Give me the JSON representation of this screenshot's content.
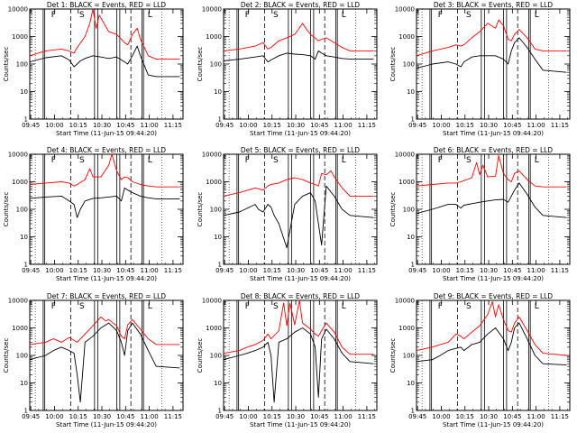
{
  "figure": {
    "background": "#ffffff",
    "colors": {
      "events": "#000000",
      "lld": "#ff0000",
      "axis": "#000000"
    }
  },
  "common": {
    "ylabel": "Counts/sec",
    "xlabel": "Start Time (11-Jun-15 09:44:20)",
    "x_ticks": [
      "09:45",
      "10:00",
      "10:15",
      "10:30",
      "10:45",
      "11:00",
      "11:15"
    ],
    "y_ticks": [
      "1",
      "10",
      "100",
      "1000",
      "10000"
    ],
    "marker_labels": {
      "F": "F",
      "S": "S",
      "L": "L"
    }
  },
  "chart_data": [
    {
      "type": "line",
      "detector": 1,
      "title": "Det 1: BLACK = Events, RED = LLD",
      "x_unit": "minutes since 09:44:20",
      "xlim": [
        0,
        97
      ],
      "yscale": "log",
      "ylim": [
        1,
        10000
      ],
      "series": [
        {
          "name": "Events",
          "color": "#000000",
          "x": [
            0,
            10,
            20,
            25,
            28,
            30,
            32,
            35,
            40,
            45,
            50,
            55,
            60,
            62,
            65,
            68,
            70,
            75,
            80,
            95
          ],
          "y": [
            120,
            170,
            200,
            140,
            80,
            100,
            130,
            160,
            200,
            180,
            160,
            180,
            120,
            100,
            200,
            450,
            200,
            40,
            35,
            35
          ]
        },
        {
          "name": "LLD",
          "color": "#ff0000",
          "x": [
            0,
            10,
            20,
            25,
            28,
            30,
            35,
            38,
            40,
            42,
            44,
            50,
            55,
            60,
            62,
            65,
            68,
            70,
            75,
            80,
            95
          ],
          "y": [
            200,
            300,
            350,
            300,
            250,
            400,
            1000,
            3000,
            10000,
            2000,
            6000,
            1500,
            1200,
            600,
            500,
            1200,
            2000,
            800,
            200,
            150,
            150
          ]
        }
      ],
      "markers": [
        {
          "label": "F",
          "x": 15
        },
        {
          "label": "S",
          "x": 33
        },
        {
          "label": "L",
          "x": 76
        }
      ]
    },
    {
      "type": "line",
      "detector": 2,
      "title": "Det 2: BLACK = Events, RED = LLD",
      "x_unit": "minutes since 09:44:20",
      "xlim": [
        0,
        97
      ],
      "yscale": "log",
      "ylim": [
        1,
        10000
      ],
      "series": [
        {
          "name": "Events",
          "color": "#000000",
          "x": [
            0,
            10,
            20,
            25,
            28,
            30,
            35,
            40,
            45,
            50,
            55,
            58,
            60,
            62,
            65,
            70,
            75,
            80,
            95
          ],
          "y": [
            130,
            150,
            180,
            200,
            120,
            140,
            200,
            250,
            230,
            220,
            200,
            150,
            300,
            250,
            200,
            180,
            160,
            150,
            150
          ]
        },
        {
          "name": "LLD",
          "color": "#ff0000",
          "x": [
            0,
            10,
            20,
            25,
            28,
            30,
            35,
            40,
            45,
            50,
            52,
            55,
            60,
            62,
            65,
            70,
            75,
            80,
            95
          ],
          "y": [
            300,
            350,
            450,
            600,
            350,
            400,
            700,
            900,
            1200,
            3000,
            2000,
            1200,
            700,
            800,
            900,
            600,
            400,
            300,
            300
          ]
        }
      ],
      "markers": [
        {
          "label": "F",
          "x": 15
        },
        {
          "label": "S",
          "x": 33
        },
        {
          "label": "L",
          "x": 76
        }
      ]
    },
    {
      "type": "line",
      "detector": 3,
      "title": "Det 3: BLACK = Events, RED = LLD",
      "x_unit": "minutes since 09:44:20",
      "xlim": [
        0,
        97
      ],
      "yscale": "log",
      "ylim": [
        1,
        10000
      ],
      "series": [
        {
          "name": "Events",
          "color": "#000000",
          "x": [
            0,
            10,
            20,
            25,
            28,
            30,
            35,
            40,
            45,
            50,
            55,
            58,
            60,
            62,
            65,
            70,
            75,
            80,
            95
          ],
          "y": [
            70,
            100,
            120,
            100,
            80,
            120,
            180,
            200,
            200,
            200,
            150,
            100,
            300,
            600,
            900,
            400,
            150,
            60,
            50
          ]
        },
        {
          "name": "LLD",
          "color": "#ff0000",
          "x": [
            0,
            10,
            20,
            25,
            28,
            30,
            35,
            40,
            45,
            50,
            52,
            55,
            58,
            60,
            62,
            65,
            70,
            75,
            80,
            95
          ],
          "y": [
            200,
            300,
            400,
            500,
            450,
            500,
            900,
            1500,
            3000,
            2000,
            4000,
            2500,
            800,
            700,
            1200,
            1800,
            900,
            350,
            300,
            300
          ]
        }
      ],
      "markers": [
        {
          "label": "F",
          "x": 15
        },
        {
          "label": "S",
          "x": 33
        },
        {
          "label": "L",
          "x": 76
        }
      ]
    },
    {
      "type": "line",
      "detector": 4,
      "title": "Det 4: BLACK = Events, RED = LLD",
      "x_unit": "minutes since 09:44:20",
      "xlim": [
        0,
        97
      ],
      "yscale": "log",
      "ylim": [
        1,
        10000
      ],
      "series": [
        {
          "name": "Events",
          "color": "#000000",
          "x": [
            0,
            10,
            20,
            25,
            28,
            30,
            32,
            35,
            40,
            45,
            50,
            55,
            58,
            60,
            62,
            65,
            70,
            75,
            80,
            95
          ],
          "y": [
            250,
            280,
            300,
            200,
            150,
            50,
            100,
            200,
            250,
            260,
            280,
            300,
            200,
            600,
            500,
            400,
            300,
            260,
            240,
            240
          ]
        },
        {
          "name": "LLD",
          "color": "#ff0000",
          "x": [
            0,
            10,
            20,
            25,
            28,
            30,
            35,
            38,
            40,
            45,
            50,
            52,
            55,
            58,
            60,
            62,
            65,
            70,
            75,
            80,
            95
          ],
          "y": [
            800,
            900,
            1000,
            900,
            700,
            800,
            1200,
            3000,
            1500,
            1500,
            4000,
            10000,
            2500,
            1200,
            1500,
            1400,
            1000,
            800,
            700,
            650,
            650
          ]
        }
      ],
      "markers": [
        {
          "label": "F",
          "x": 15
        },
        {
          "label": "S",
          "x": 33
        },
        {
          "label": "L",
          "x": 76
        }
      ]
    },
    {
      "type": "line",
      "detector": 5,
      "title": "Det 5: BLACK = Events, RED = LLD",
      "x_unit": "minutes since 09:44:20",
      "xlim": [
        0,
        97
      ],
      "yscale": "log",
      "ylim": [
        1,
        10000
      ],
      "series": [
        {
          "name": "Events",
          "color": "#000000",
          "x": [
            0,
            10,
            20,
            22,
            25,
            28,
            30,
            32,
            35,
            40,
            45,
            50,
            55,
            58,
            60,
            62,
            65,
            70,
            75,
            80,
            95
          ],
          "y": [
            60,
            80,
            150,
            100,
            80,
            150,
            120,
            60,
            30,
            4,
            150,
            300,
            400,
            200,
            30,
            5,
            700,
            300,
            100,
            60,
            50
          ]
        },
        {
          "name": "LLD",
          "color": "#ff0000",
          "x": [
            0,
            10,
            20,
            25,
            28,
            30,
            35,
            40,
            45,
            50,
            55,
            58,
            60,
            62,
            65,
            68,
            70,
            75,
            80,
            95
          ],
          "y": [
            300,
            400,
            600,
            500,
            700,
            800,
            900,
            1200,
            1400,
            1200,
            900,
            800,
            700,
            2000,
            1800,
            2500,
            1500,
            600,
            300,
            300
          ]
        }
      ],
      "markers": [
        {
          "label": "F",
          "x": 15
        },
        {
          "label": "S",
          "x": 33
        },
        {
          "label": "L",
          "x": 76
        }
      ]
    },
    {
      "type": "line",
      "detector": 6,
      "title": "Det 6: BLACK = Events, RED = LLD",
      "x_unit": "minutes since 09:44:20",
      "xlim": [
        0,
        97
      ],
      "yscale": "log",
      "ylim": [
        1,
        10000
      ],
      "series": [
        {
          "name": "Events",
          "color": "#000000",
          "x": [
            0,
            10,
            20,
            25,
            28,
            30,
            35,
            40,
            45,
            50,
            55,
            58,
            60,
            62,
            65,
            70,
            75,
            80,
            95
          ],
          "y": [
            70,
            100,
            150,
            150,
            110,
            140,
            160,
            180,
            200,
            220,
            230,
            180,
            300,
            500,
            900,
            350,
            120,
            60,
            50
          ]
        },
        {
          "name": "LLD",
          "color": "#ff0000",
          "x": [
            0,
            10,
            20,
            25,
            28,
            30,
            35,
            38,
            40,
            42,
            45,
            50,
            52,
            55,
            58,
            60,
            62,
            65,
            70,
            75,
            80,
            95
          ],
          "y": [
            700,
            800,
            900,
            900,
            1000,
            1100,
            1400,
            5000,
            1800,
            4000,
            1500,
            1600,
            9000,
            2000,
            1200,
            1000,
            2000,
            2500,
            1200,
            700,
            650,
            650
          ]
        }
      ],
      "markers": [
        {
          "label": "F",
          "x": 15
        },
        {
          "label": "S",
          "x": 33
        },
        {
          "label": "L",
          "x": 76
        }
      ]
    },
    {
      "type": "line",
      "detector": 7,
      "title": "Det 7: BLACK = Events, RED = LLD",
      "x_unit": "minutes since 09:44:20",
      "xlim": [
        0,
        97
      ],
      "yscale": "log",
      "ylim": [
        1,
        10000
      ],
      "series": [
        {
          "name": "Events",
          "color": "#000000",
          "x": [
            0,
            10,
            15,
            20,
            25,
            28,
            30,
            32,
            35,
            40,
            45,
            50,
            55,
            58,
            60,
            62,
            65,
            70,
            75,
            80,
            95
          ],
          "y": [
            70,
            100,
            150,
            200,
            150,
            120,
            20,
            2,
            300,
            500,
            1000,
            1500,
            800,
            300,
            100,
            800,
            1500,
            600,
            150,
            40,
            35
          ]
        },
        {
          "name": "LLD",
          "color": "#ff0000",
          "x": [
            0,
            10,
            15,
            20,
            25,
            28,
            30,
            35,
            40,
            45,
            48,
            50,
            55,
            58,
            60,
            62,
            65,
            70,
            75,
            80,
            95
          ],
          "y": [
            250,
            300,
            400,
            300,
            450,
            350,
            300,
            600,
            1200,
            2500,
            1800,
            2000,
            1200,
            500,
            400,
            1300,
            2000,
            900,
            400,
            250,
            250
          ]
        }
      ],
      "markers": [
        {
          "label": "F",
          "x": 15
        },
        {
          "label": "S",
          "x": 33
        },
        {
          "label": "L",
          "x": 76
        }
      ]
    },
    {
      "type": "line",
      "detector": 8,
      "title": "Det 8: BLACK = Events, RED = LLD",
      "x_unit": "minutes since 09:44:20",
      "xlim": [
        0,
        97
      ],
      "yscale": "log",
      "ylim": [
        1,
        10000
      ],
      "series": [
        {
          "name": "Events",
          "color": "#000000",
          "x": [
            0,
            10,
            15,
            20,
            25,
            28,
            30,
            32,
            35,
            40,
            45,
            50,
            55,
            58,
            60,
            62,
            65,
            70,
            75,
            80,
            95
          ],
          "y": [
            70,
            100,
            120,
            150,
            200,
            300,
            100,
            2,
            300,
            400,
            700,
            1000,
            600,
            200,
            3,
            400,
            900,
            400,
            120,
            60,
            50
          ]
        },
        {
          "name": "LLD",
          "color": "#ff0000",
          "x": [
            0,
            10,
            15,
            20,
            25,
            28,
            30,
            35,
            38,
            40,
            42,
            45,
            48,
            50,
            55,
            58,
            60,
            62,
            65,
            70,
            75,
            80,
            95
          ],
          "y": [
            120,
            150,
            200,
            250,
            350,
            600,
            400,
            800,
            8000,
            1200,
            8000,
            1300,
            10000,
            1500,
            900,
            600,
            500,
            800,
            1500,
            700,
            200,
            110,
            110
          ]
        }
      ],
      "markers": [
        {
          "label": "F",
          "x": 15
        },
        {
          "label": "S",
          "x": 33
        },
        {
          "label": "L",
          "x": 76
        }
      ]
    },
    {
      "type": "line",
      "detector": 9,
      "title": "Det 9: BLACK = Events, RED = LLD",
      "x_unit": "minutes since 09:44:20",
      "xlim": [
        0,
        97
      ],
      "yscale": "log",
      "ylim": [
        1,
        10000
      ],
      "series": [
        {
          "name": "Events",
          "color": "#000000",
          "x": [
            0,
            10,
            15,
            20,
            25,
            28,
            30,
            35,
            40,
            45,
            50,
            55,
            58,
            60,
            62,
            65,
            70,
            75,
            80,
            95
          ],
          "y": [
            60,
            70,
            100,
            150,
            180,
            200,
            150,
            250,
            300,
            600,
            1000,
            400,
            150,
            300,
            1000,
            1500,
            400,
            100,
            50,
            45
          ]
        },
        {
          "name": "LLD",
          "color": "#ff0000",
          "x": [
            0,
            10,
            15,
            20,
            25,
            28,
            30,
            35,
            40,
            45,
            48,
            50,
            52,
            55,
            58,
            60,
            62,
            65,
            70,
            75,
            80,
            95
          ],
          "y": [
            150,
            200,
            250,
            300,
            600,
            500,
            400,
            700,
            1200,
            3000,
            9000,
            2500,
            7000,
            2000,
            800,
            700,
            1500,
            2500,
            800,
            250,
            120,
            100
          ]
        }
      ],
      "markers": [
        {
          "label": "F",
          "x": 15
        },
        {
          "label": "S",
          "x": 33
        },
        {
          "label": "L",
          "x": 76
        }
      ]
    }
  ]
}
